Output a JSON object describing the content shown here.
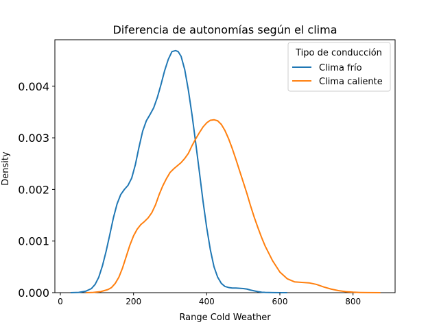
{
  "chart_data": {
    "type": "line",
    "title": "Diferencia de autonomías según el clima",
    "xlabel": "Range Cold Weather",
    "ylabel": "Density",
    "xlim": [
      -15,
      915
    ],
    "ylim": [
      0,
      0.0049
    ],
    "xticks": [
      0,
      200,
      400,
      600,
      800
    ],
    "yticks": [
      0.0,
      0.001,
      0.002,
      0.003,
      0.004
    ],
    "ytick_labels": [
      "0.000",
      "0.001",
      "0.002",
      "0.003",
      "0.004"
    ],
    "xtick_labels": [
      "0",
      "200",
      "400",
      "600",
      "800"
    ],
    "grid": false,
    "legend": {
      "title": "Tipo de conducción",
      "placement": "top-right"
    },
    "series": [
      {
        "name": "Clima frío",
        "color": "#1f77b4",
        "x": [
          28,
          50,
          70,
          85,
          95,
          105,
          115,
          125,
          135,
          145,
          155,
          165,
          175,
          185,
          195,
          205,
          215,
          225,
          235,
          245,
          255,
          265,
          275,
          285,
          295,
          305,
          315,
          322,
          330,
          340,
          350,
          360,
          370,
          380,
          390,
          400,
          410,
          420,
          430,
          440,
          450,
          460,
          470,
          480,
          490,
          500,
          510,
          520,
          530,
          540,
          550,
          560,
          580,
          600,
          620
        ],
        "y": [
          0,
          5e-06,
          3e-05,
          8e-05,
          0.00016,
          0.0003,
          0.00052,
          0.0008,
          0.00112,
          0.00145,
          0.00172,
          0.0019,
          0.002,
          0.00208,
          0.00222,
          0.00248,
          0.00282,
          0.00313,
          0.00333,
          0.00345,
          0.00358,
          0.00378,
          0.00403,
          0.0043,
          0.00452,
          0.00467,
          0.00469,
          0.00467,
          0.00458,
          0.00432,
          0.00392,
          0.00344,
          0.0029,
          0.00234,
          0.00177,
          0.00126,
          0.00083,
          0.0005,
          0.0003,
          0.00018,
          0.00012,
          0.0001,
          9e-05,
          9e-05,
          8.5e-05,
          8e-05,
          7e-05,
          5e-05,
          3.5e-05,
          2e-05,
          1e-05,
          5e-06,
          1e-06,
          0,
          0
        ]
      },
      {
        "name": "Clima caliente",
        "color": "#ff7f0e",
        "x": [
          70,
          90,
          110,
          130,
          140,
          150,
          160,
          170,
          180,
          190,
          200,
          210,
          220,
          230,
          240,
          250,
          260,
          270,
          280,
          290,
          300,
          310,
          320,
          330,
          340,
          350,
          360,
          370,
          380,
          390,
          400,
          410,
          420,
          430,
          440,
          450,
          460,
          470,
          480,
          490,
          500,
          510,
          520,
          530,
          540,
          550,
          560,
          580,
          600,
          620,
          640,
          660,
          680,
          700,
          720,
          740,
          760,
          780,
          800,
          820,
          840,
          875
        ],
        "y": [
          0,
          5e-06,
          2e-05,
          6e-05,
          0.0001,
          0.00018,
          0.0003,
          0.00048,
          0.0007,
          0.00092,
          0.0011,
          0.00123,
          0.00132,
          0.00138,
          0.00145,
          0.00155,
          0.0017,
          0.0019,
          0.00207,
          0.00221,
          0.00233,
          0.0024,
          0.00246,
          0.00252,
          0.0026,
          0.0027,
          0.00285,
          0.00298,
          0.0031,
          0.00321,
          0.00329,
          0.00334,
          0.00335,
          0.00333,
          0.00326,
          0.00314,
          0.00298,
          0.00279,
          0.00258,
          0.00236,
          0.00214,
          0.00192,
          0.00168,
          0.00146,
          0.00126,
          0.00107,
          0.0009,
          0.00062,
          0.0004,
          0.00027,
          0.00021,
          0.0002,
          0.00019,
          0.00016,
          0.00011,
          7e-05,
          4e-05,
          2e-05,
          1e-05,
          4e-06,
          1e-06,
          0
        ]
      }
    ]
  }
}
